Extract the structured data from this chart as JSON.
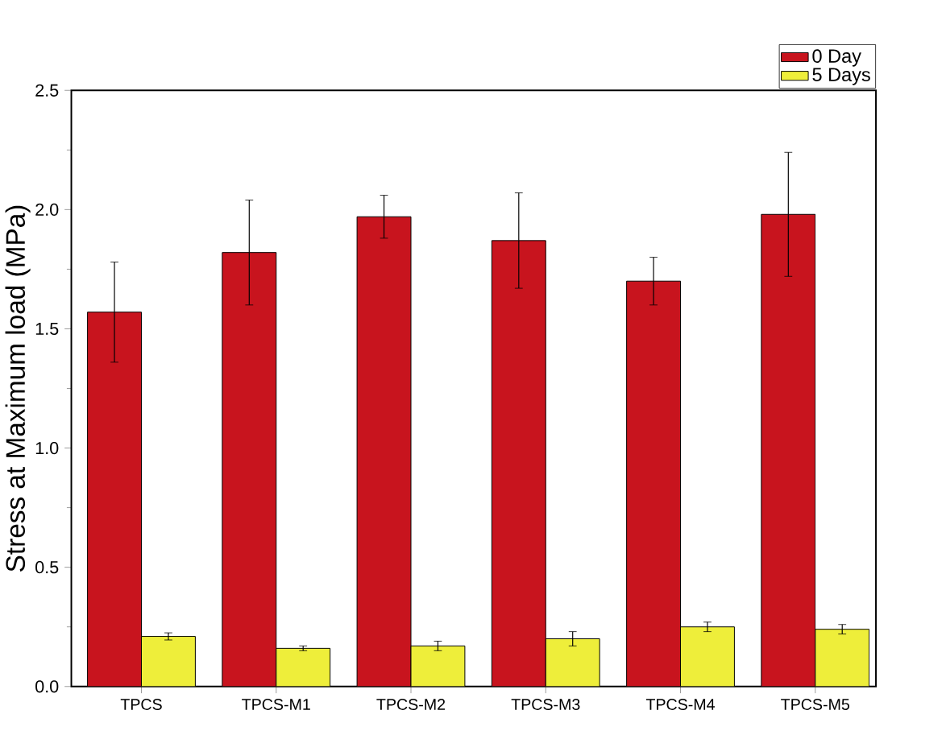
{
  "chart_data": {
    "type": "bar",
    "ylabel": "Stress at Maximum load (MPa)",
    "categories": [
      "TPCS",
      "TPCS-M1",
      "TPCS-M2",
      "TPCS-M3",
      "TPCS-M4",
      "TPCS-M5"
    ],
    "series": [
      {
        "name": "0 Day",
        "color": "#c8141e",
        "values": [
          1.57,
          1.82,
          1.97,
          1.87,
          1.7,
          1.98
        ],
        "errors": [
          0.21,
          0.22,
          0.09,
          0.2,
          0.1,
          0.26
        ]
      },
      {
        "name": "5 Days",
        "color": "#eeee3a",
        "values": [
          0.21,
          0.16,
          0.17,
          0.2,
          0.25,
          0.24
        ],
        "errors": [
          0.015,
          0.01,
          0.02,
          0.03,
          0.02,
          0.02
        ]
      }
    ],
    "ylim": [
      0,
      2.5
    ],
    "yticks": [
      {
        "value": 0,
        "label": "0.0"
      },
      {
        "value": 0.5,
        "label": "0.5"
      },
      {
        "value": 1,
        "label": "1.0"
      },
      {
        "value": 1.5,
        "label": "1.5"
      },
      {
        "value": 2,
        "label": "2.0"
      },
      {
        "value": 2.5,
        "label": "2.5"
      }
    ],
    "legend": "top right"
  }
}
